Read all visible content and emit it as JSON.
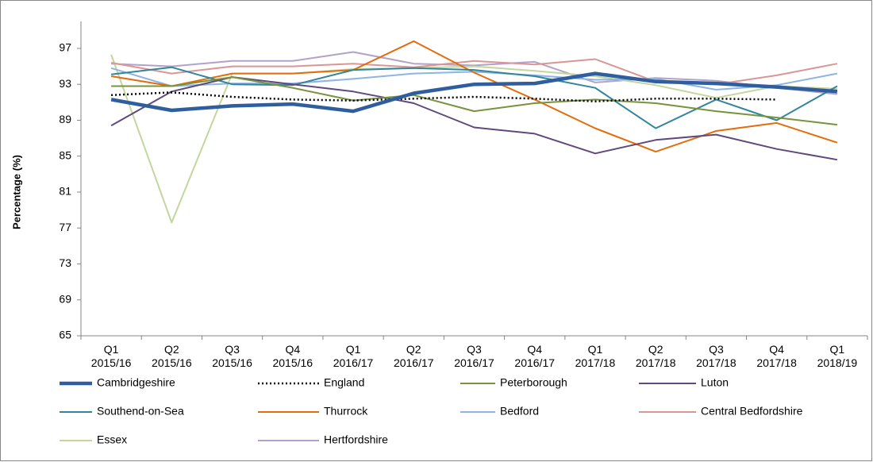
{
  "chart_data": {
    "type": "line",
    "y_label": "Percentage (%)",
    "categories": [
      "Q1 2015/16",
      "Q2 2015/16",
      "Q3 2015/16",
      "Q4 2015/16",
      "Q1 2016/17",
      "Q2 2016/17",
      "Q3 2016/17",
      "Q4 2016/17",
      "Q1 2017/18",
      "Q2 2017/18",
      "Q3 2017/18",
      "Q4 2017/18",
      "Q1 2018/19"
    ],
    "ylim": [
      65,
      100
    ],
    "yticks": [
      65,
      69,
      73,
      77,
      81,
      85,
      89,
      93,
      97
    ],
    "grid": false,
    "legend": "bottom",
    "series": [
      {
        "name": "Cambridgeshire",
        "color": "#2e5e9e",
        "values": [
          91.3,
          90.1,
          90.6,
          90.8,
          90.0,
          92.0,
          93.0,
          93.1,
          94.2,
          93.3,
          93.1,
          92.7,
          92.2
        ]
      },
      {
        "name": "England",
        "color": "#000000",
        "values": [
          91.8,
          92.1,
          91.6,
          91.3,
          91.2,
          91.4,
          91.6,
          91.4,
          91.1,
          91.4,
          91.4,
          91.3,
          null
        ]
      },
      {
        "name": "Peterborough",
        "color": "#77933c",
        "values": [
          92.8,
          92.8,
          93.8,
          92.6,
          91.2,
          91.8,
          90.0,
          90.9,
          91.3,
          90.9,
          90.0,
          89.3,
          88.5
        ]
      },
      {
        "name": "Luton",
        "color": "#604a7b",
        "values": [
          88.4,
          92.2,
          93.8,
          93.0,
          92.2,
          90.9,
          88.2,
          87.5,
          85.3,
          86.8,
          87.4,
          85.8,
          84.6
        ]
      },
      {
        "name": "Southend-on-Sea",
        "color": "#31859c",
        "values": [
          94.1,
          94.9,
          93.0,
          92.9,
          94.6,
          94.8,
          94.6,
          93.9,
          92.6,
          88.1,
          91.3,
          89.0,
          92.8
        ]
      },
      {
        "name": "Thurrock",
        "color": "#e46c0a",
        "values": [
          93.9,
          92.8,
          94.2,
          94.2,
          94.6,
          97.8,
          94.3,
          91.3,
          88.1,
          85.5,
          87.8,
          88.7,
          86.5
        ]
      },
      {
        "name": "Bedford",
        "color": "#8eb4e3",
        "values": [
          94.8,
          92.8,
          93.1,
          93.1,
          93.6,
          94.2,
          94.4,
          94.0,
          93.5,
          93.6,
          92.4,
          92.9,
          94.2
        ]
      },
      {
        "name": "Central Bedfordshire",
        "color": "#d99694",
        "values": [
          95.4,
          94.2,
          95.0,
          95.0,
          95.3,
          94.9,
          95.6,
          95.2,
          95.8,
          93.3,
          93.0,
          94.0,
          95.3
        ]
      },
      {
        "name": "Essex",
        "color": "#c3d69b",
        "values": [
          96.3,
          77.6,
          94.2,
          94.2,
          94.7,
          94.8,
          95.0,
          94.5,
          93.9,
          92.9,
          91.5,
          92.8,
          92.5
        ]
      },
      {
        "name": "Hertfordshire",
        "color": "#b3a2c7",
        "values": [
          95.3,
          95.0,
          95.6,
          95.6,
          96.6,
          95.3,
          95.1,
          95.5,
          93.2,
          93.7,
          93.4,
          92.6,
          91.9
        ]
      }
    ]
  }
}
